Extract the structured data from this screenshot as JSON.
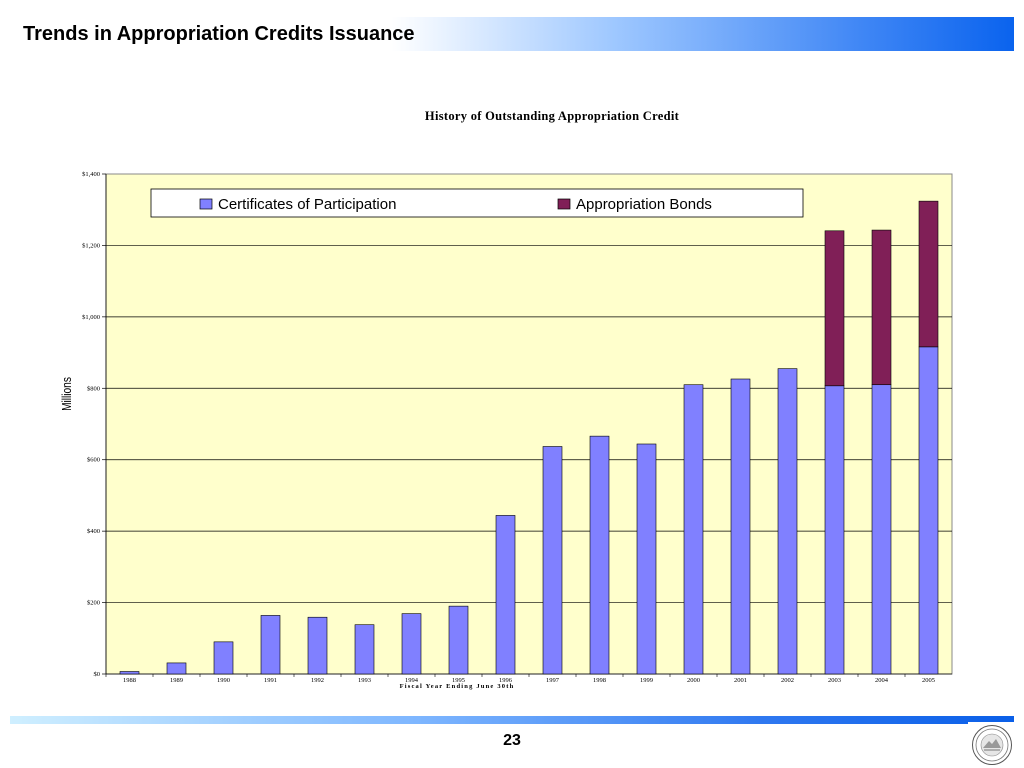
{
  "header": {
    "title": "Trends in Appropriation Credits Issuance"
  },
  "footer": {
    "page_number": "23"
  },
  "colors": {
    "plot_background": "#ffffcc",
    "cop": "#8080ff",
    "bonds": "#801f57",
    "gridline": "#000000"
  },
  "chart_data": {
    "type": "bar",
    "stacked": true,
    "title": "History of Outstanding Appropriation Credit",
    "xlabel": "Fiscal Year Ending June 30th",
    "ylabel": "Millions",
    "ylim": [
      0,
      1400
    ],
    "yticks": [
      0,
      200,
      400,
      600,
      800,
      1000,
      1200,
      1400
    ],
    "ytick_labels": [
      "$0",
      "$200",
      "$400",
      "$600",
      "$800",
      "$1,000",
      "$1,200",
      "$1,400"
    ],
    "grid": true,
    "legend_position": "top",
    "categories": [
      "1988",
      "1989",
      "1990",
      "1991",
      "1992",
      "1993",
      "1994",
      "1995",
      "1996",
      "1997",
      "1998",
      "1999",
      "2000",
      "2001",
      "2002",
      "2003",
      "2004",
      "2005"
    ],
    "series": [
      {
        "name": "Certificates of Participation",
        "color": "#8080ff",
        "values": [
          7,
          31,
          90,
          164,
          159,
          138,
          169,
          190,
          444,
          637,
          666,
          644,
          810,
          826,
          855,
          807,
          810,
          916
        ]
      },
      {
        "name": "Appropriation Bonds",
        "color": "#801f57",
        "values": [
          0,
          0,
          0,
          0,
          0,
          0,
          0,
          0,
          0,
          0,
          0,
          0,
          0,
          0,
          0,
          434,
          433,
          408
        ]
      }
    ]
  }
}
